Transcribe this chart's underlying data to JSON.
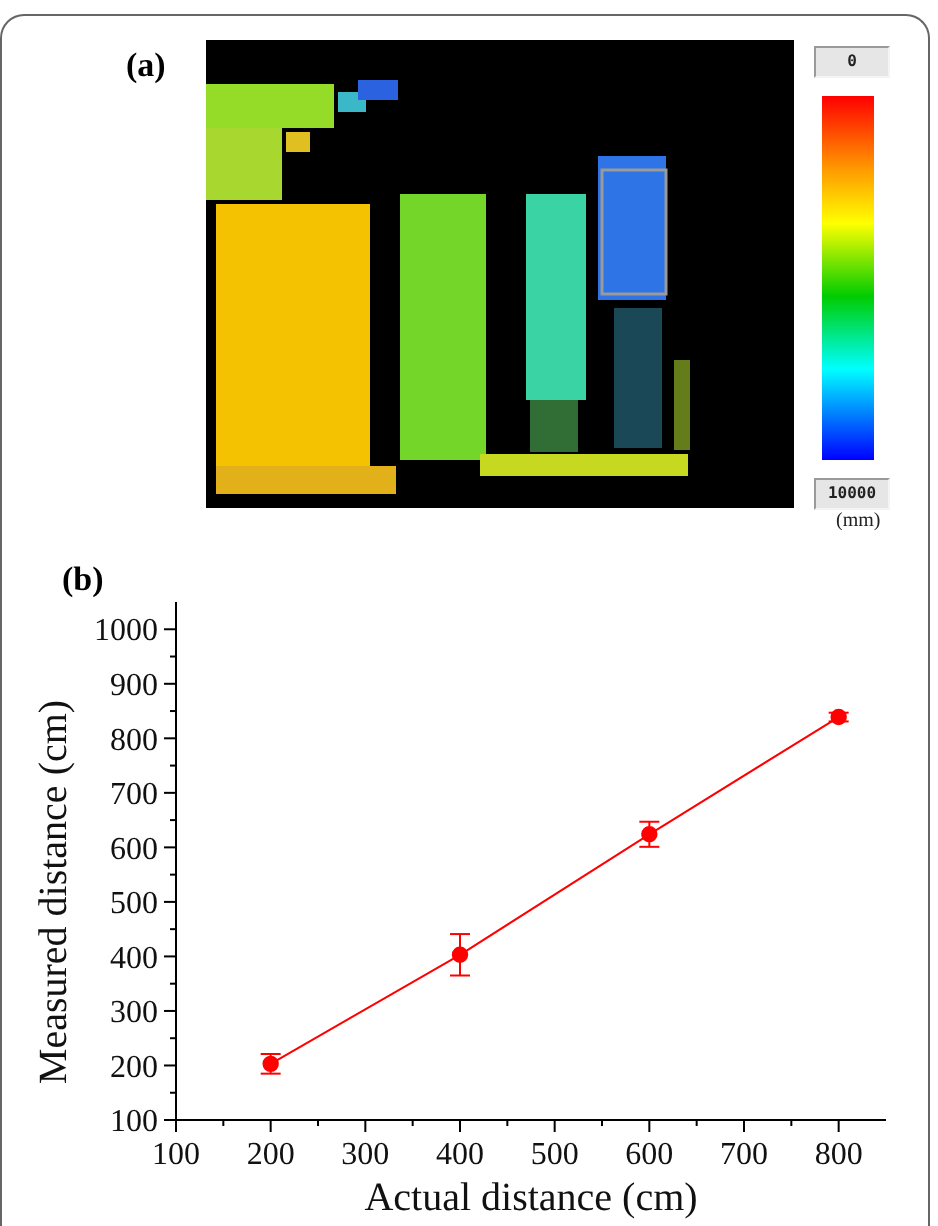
{
  "chart_data": [
    {
      "type": "other",
      "title": "(a)",
      "annotations": [
        "0",
        "10000",
        "(mm)"
      ]
    },
    {
      "type": "line",
      "title": "(b)",
      "xlabel": "Actual distance (cm)",
      "ylabel": "Measured distance (cm)",
      "x": [
        200,
        400,
        600,
        800
      ],
      "series": [
        {
          "color": "#ff0000",
          "values": [
            203,
            403,
            624,
            839
          ],
          "errors": [
            18,
            38,
            23,
            8
          ]
        }
      ],
      "xlim": [
        100,
        850
      ],
      "xticks": [
        100,
        {
          "value": 150,
          "label": null
        },
        200,
        {
          "value": 250,
          "label": null
        },
        300,
        {
          "value": 350,
          "label": null
        },
        400,
        {
          "value": 450,
          "label": null
        },
        500,
        {
          "value": 550,
          "label": null
        },
        600,
        {
          "value": 650,
          "label": null
        },
        700,
        {
          "value": 750,
          "label": null
        },
        800
      ],
      "ylim": [
        100,
        1050
      ],
      "yticks": [
        100,
        {
          "value": 150,
          "label": null
        },
        200,
        {
          "value": 250,
          "label": null
        },
        300,
        {
          "value": 350,
          "label": null
        },
        400,
        {
          "value": 450,
          "label": null
        },
        500,
        {
          "value": 550,
          "label": null
        },
        600,
        {
          "value": 650,
          "label": null
        },
        700,
        {
          "value": 750,
          "label": null
        },
        800,
        {
          "value": 850,
          "label": null
        },
        900,
        {
          "value": 950,
          "label": null
        },
        1000
      ],
      "marker": "circle",
      "line_style": "solid"
    }
  ]
}
